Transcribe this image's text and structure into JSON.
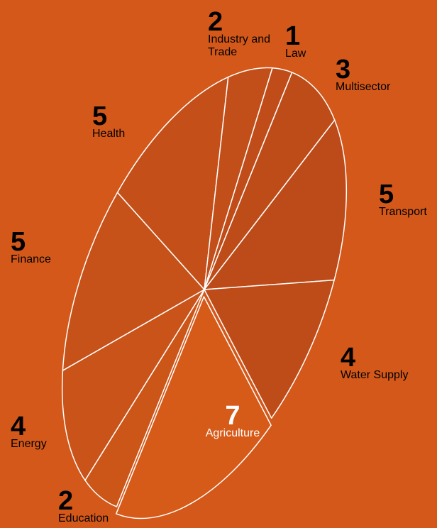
{
  "chart_data": {
    "type": "pie",
    "categories": [
      "Agriculture",
      "Education",
      "Energy",
      "Finance",
      "Health",
      "Industry and Trade",
      "Law",
      "Multisector",
      "Transport",
      "Water Supply"
    ],
    "values": [
      7,
      2,
      4,
      5,
      5,
      2,
      1,
      3,
      5,
      4
    ],
    "colors": [
      "#d65a18",
      "#cc5518",
      "#c95318",
      "#c65119",
      "#c44f19",
      "#c24e19",
      "#c04d19",
      "#be4c19",
      "#bc4b19",
      "#bd4c19"
    ]
  }
}
